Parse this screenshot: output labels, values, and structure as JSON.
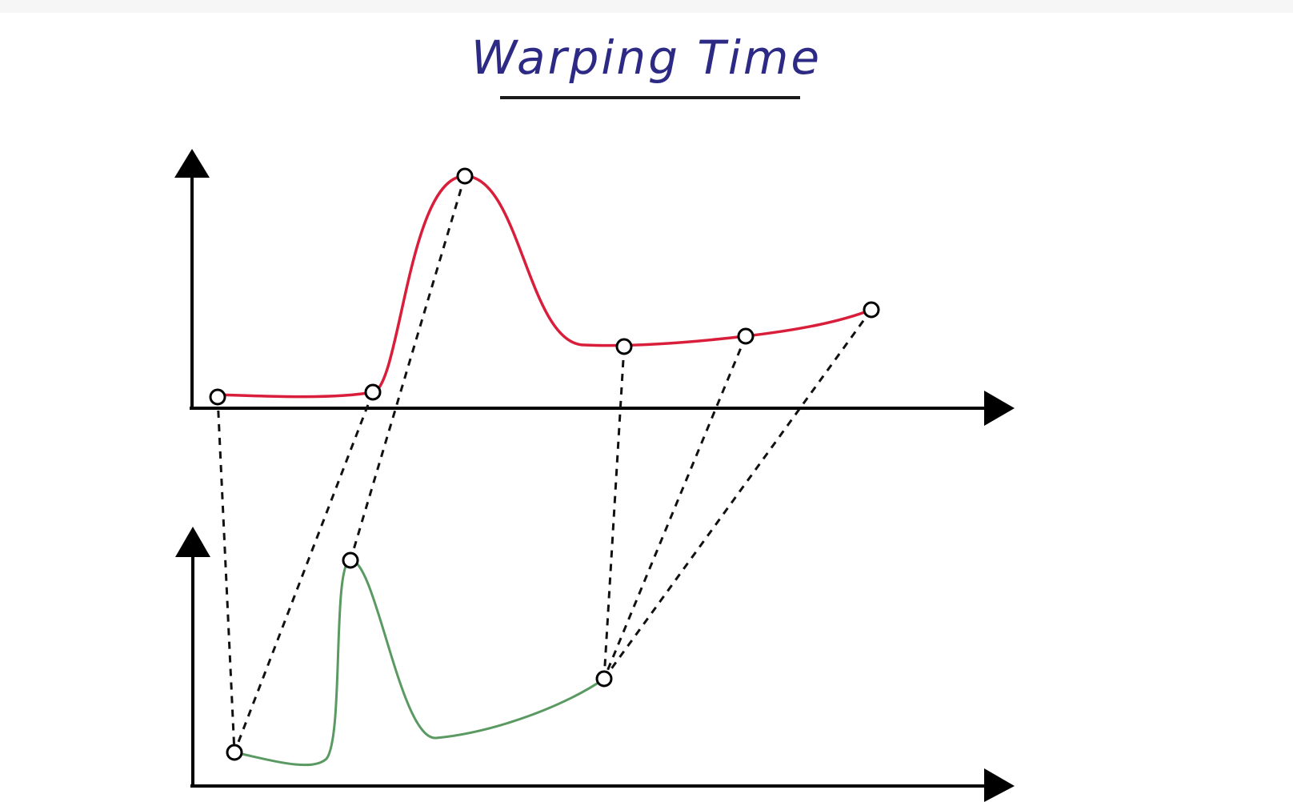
{
  "title": "Warping Time",
  "colors": {
    "title": "#2d2a85",
    "series_top": "#d81e3a",
    "series_bottom": "#5a9a62",
    "axes": "#000000",
    "links": "#111111"
  },
  "icons": {
    "axis_arrow": "filled-triangle-arrow",
    "match_point": "hollow-circle"
  }
}
